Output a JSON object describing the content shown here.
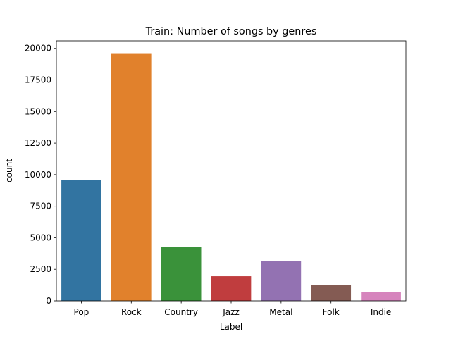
{
  "chart_data": {
    "type": "bar",
    "title": "Train: Number of songs by genres",
    "xlabel": "Label",
    "ylabel": "count",
    "categories": [
      "Pop",
      "Rock",
      "Country",
      "Jazz",
      "Metal",
      "Folk",
      "Indie"
    ],
    "values": [
      9550,
      19620,
      4250,
      1950,
      3180,
      1230,
      680
    ],
    "colors": [
      "#3274a1",
      "#e1812c",
      "#3a923a",
      "#c03d3e",
      "#9372b2",
      "#845b53",
      "#d684bd"
    ],
    "ylim": [
      0,
      20600
    ],
    "yticks": [
      0,
      2500,
      5000,
      7500,
      10000,
      12500,
      15000,
      17500,
      20000
    ],
    "grid": false,
    "legend": "none"
  }
}
